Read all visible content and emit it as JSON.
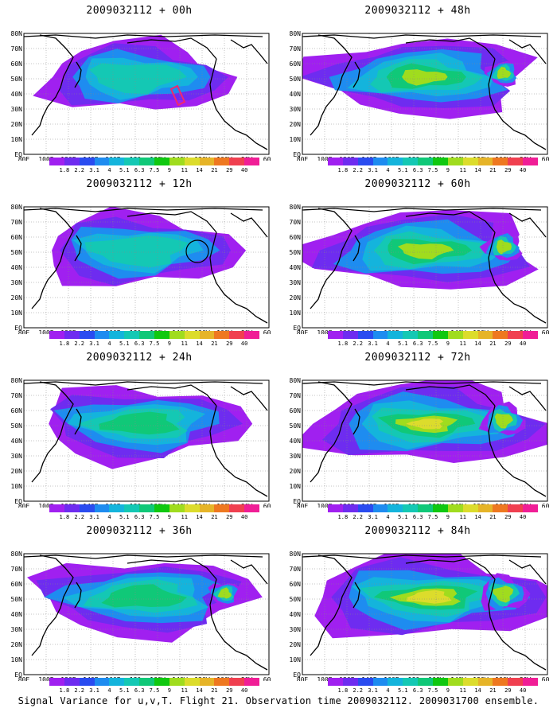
{
  "panels": [
    {
      "title": "2009032112 + 00h",
      "intensity": 0.35,
      "marker": "pink-rectangle"
    },
    {
      "title": "2009032112 + 12h",
      "intensity": 0.45,
      "marker": "circle"
    },
    {
      "title": "2009032112 + 24h",
      "intensity": 0.55,
      "marker": ""
    },
    {
      "title": "2009032112 + 36h",
      "intensity": 0.65,
      "marker": ""
    },
    {
      "title": "2009032112 + 48h",
      "intensity": 0.7,
      "marker": ""
    },
    {
      "title": "2009032112 + 60h",
      "intensity": 0.8,
      "marker": ""
    },
    {
      "title": "2009032112 + 72h",
      "intensity": 0.9,
      "marker": ""
    },
    {
      "title": "2009032112 + 84h",
      "intensity": 1.0,
      "marker": ""
    }
  ],
  "lon_labels": [
    "80E",
    "100E",
    "120E",
    "140E",
    "160E",
    "180",
    "160W",
    "140W",
    "120W",
    "100W",
    "80W",
    "60W"
  ],
  "lat_labels": [
    "80N",
    "70N",
    "60N",
    "50N",
    "40N",
    "30N",
    "20N",
    "10N",
    "EQ"
  ],
  "colorbar": {
    "labels": [
      "1.8",
      "2.2",
      "3.1",
      "4",
      "5.1",
      "6.3",
      "7.5",
      "9",
      "11",
      "14",
      "21",
      "29",
      "40"
    ],
    "colors": [
      "#a020f0",
      "#6e2cf0",
      "#2a4cf0",
      "#1e8cf0",
      "#14b4dc",
      "#14c8b4",
      "#10c878",
      "#10c810",
      "#a0dc1e",
      "#dcdc2c",
      "#e6b428",
      "#ee7820",
      "#f04050",
      "#f01e96"
    ]
  },
  "footer": "Signal Variance for u,v,T. Flight 21. Observation time 2009032112. 2009031700 ensemble."
}
